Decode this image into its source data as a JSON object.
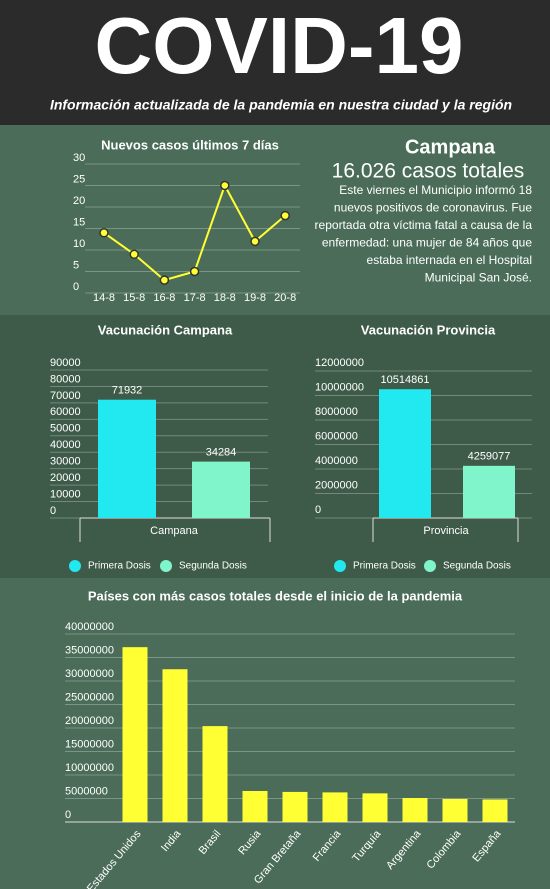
{
  "header": {
    "title": "COVID-19",
    "subtitle": "Información actualizada de la pandemia en nuestra ciudad y la región"
  },
  "campana": {
    "title": "Campana",
    "total": "16.026 casos totales",
    "text": [
      "Este viernes el Municipio informó 18",
      "nuevos positivos de coronavirus. Fue",
      "reportada otra víctima fatal a causa de la",
      "enfermedad: una mujer de 84 años que",
      "estaba internada en el Hospital",
      "Municipal San José."
    ]
  },
  "chart_data": [
    {
      "type": "line",
      "title": "Nuevos casos últimos 7 días",
      "categories": [
        "14-8",
        "15-8",
        "16-8",
        "17-8",
        "18-8",
        "19-8",
        "20-8"
      ],
      "values": [
        14,
        9,
        3,
        5,
        25,
        12,
        18
      ],
      "color": "#ffff33",
      "ylim": [
        0,
        30
      ],
      "yticks": [
        0,
        5,
        10,
        15,
        20,
        25,
        30
      ],
      "grid": true
    },
    {
      "type": "bar",
      "title": "Vacunación Campana",
      "categories": [
        "Campana"
      ],
      "series": [
        {
          "name": "Primera Dosis",
          "color": "#22e8ef",
          "values": [
            71932
          ]
        },
        {
          "name": "Segunda Dosis",
          "color": "#80f5cc",
          "values": [
            34284
          ]
        }
      ],
      "ylim": [
        0,
        90000
      ],
      "yticks": [
        0,
        10000,
        20000,
        30000,
        40000,
        50000,
        60000,
        70000,
        80000,
        90000
      ],
      "grid": true
    },
    {
      "type": "bar",
      "title": "Vacunación Provincia",
      "categories": [
        "Provincia"
      ],
      "series": [
        {
          "name": "Primera Dosis",
          "color": "#22e8ef",
          "values": [
            10514861
          ]
        },
        {
          "name": "Segunda Dosis",
          "color": "#80f5cc",
          "values": [
            4259077
          ]
        }
      ],
      "ylim": [
        0,
        12000000
      ],
      "yticks": [
        0,
        2000000,
        4000000,
        6000000,
        8000000,
        10000000,
        12000000
      ],
      "grid": true
    },
    {
      "type": "bar",
      "title": "Países con más casos totales desde el inicio de la pandemia",
      "categories": [
        "Estados Unidos",
        "India",
        "Brasil",
        "Rusia",
        "Gran Bretaña",
        "Francia",
        "Turquía",
        "Argentina",
        "Colombia",
        "España"
      ],
      "values": [
        37200000,
        32500000,
        20400000,
        6600000,
        6400000,
        6300000,
        6100000,
        5100000,
        4900000,
        4800000
      ],
      "color": "#ffff33",
      "ylim": [
        0,
        40000000
      ],
      "yticks": [
        0,
        5000000,
        10000000,
        15000000,
        20000000,
        25000000,
        30000000,
        35000000,
        40000000
      ],
      "grid": true
    }
  ]
}
